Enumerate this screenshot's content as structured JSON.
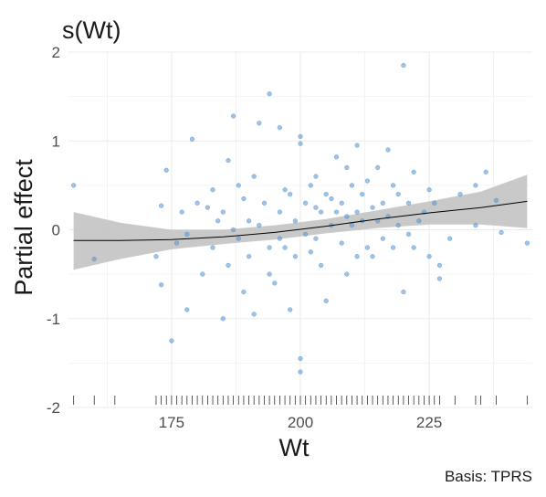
{
  "chart_data": {
    "type": "scatter",
    "title": "s(Wt)",
    "xlabel": "Wt",
    "ylabel": "Partial effect",
    "caption": "Basis: TPRS",
    "xlim": [
      155,
      245
    ],
    "ylim": [
      -2,
      2
    ],
    "x_ticks": [
      175,
      200,
      225
    ],
    "y_ticks": [
      -2,
      -1,
      0,
      1,
      2
    ],
    "grid": true,
    "colors": {
      "points": "#5B9BD5",
      "points_stroke": "#3A78B5",
      "ribbon": "#bfbfbf",
      "smooth_line": "#000000",
      "rug": "#333333",
      "grid": "#ebebeb"
    },
    "smooth": {
      "x": [
        156,
        165,
        175,
        185,
        195,
        205,
        215,
        225,
        235,
        244
      ],
      "fit": [
        -0.12,
        -0.12,
        -0.11,
        -0.08,
        -0.03,
        0.04,
        0.12,
        0.19,
        0.25,
        0.32
      ],
      "lower": [
        -0.45,
        -0.33,
        -0.22,
        -0.16,
        -0.11,
        -0.04,
        0.02,
        0.06,
        0.06,
        0.02
      ],
      "upper": [
        0.2,
        0.08,
        0.0,
        0.0,
        0.05,
        0.12,
        0.22,
        0.32,
        0.43,
        0.62
      ]
    },
    "rug_x": [
      156,
      160,
      164,
      172,
      173,
      174,
      175,
      176,
      177,
      178,
      179,
      180,
      181,
      182,
      183,
      184,
      185,
      186,
      187,
      188,
      189,
      190,
      191,
      192,
      193,
      194,
      195,
      196,
      197,
      198,
      199,
      200,
      201,
      202,
      203,
      204,
      205,
      206,
      207,
      208,
      209,
      210,
      211,
      212,
      213,
      214,
      215,
      216,
      217,
      218,
      219,
      220,
      221,
      222,
      223,
      224,
      225,
      226,
      227,
      230,
      234,
      235,
      238,
      244
    ],
    "points": [
      [
        156,
        0.5
      ],
      [
        160,
        -0.33
      ],
      [
        172,
        -0.3
      ],
      [
        173,
        0.27
      ],
      [
        174,
        0.67
      ],
      [
        173,
        -0.62
      ],
      [
        175,
        -1.25
      ],
      [
        176,
        -0.15
      ],
      [
        177,
        0.2
      ],
      [
        178,
        -0.05
      ],
      [
        178,
        -0.9
      ],
      [
        179,
        1.02
      ],
      [
        180,
        0.3
      ],
      [
        181,
        -0.5
      ],
      [
        182,
        0.25
      ],
      [
        183,
        -0.2
      ],
      [
        184,
        0.1
      ],
      [
        185,
        -1.0
      ],
      [
        186,
        0.78
      ],
      [
        186,
        -0.4
      ],
      [
        187,
        1.28
      ],
      [
        188,
        0.5
      ],
      [
        189,
        -0.7
      ],
      [
        190,
        0.1
      ],
      [
        191,
        0.6
      ],
      [
        191,
        -0.95
      ],
      [
        192,
        1.2
      ],
      [
        193,
        0.3
      ],
      [
        194,
        1.53
      ],
      [
        194,
        -0.2
      ],
      [
        195,
        -0.6
      ],
      [
        196,
        1.15
      ],
      [
        196,
        0.2
      ],
      [
        197,
        0.45
      ],
      [
        198,
        -0.9
      ],
      [
        199,
        0.1
      ],
      [
        200,
        1.05
      ],
      [
        200,
        0.97
      ],
      [
        200,
        -1.45
      ],
      [
        200,
        -1.6
      ],
      [
        201,
        0.3
      ],
      [
        202,
        -0.25
      ],
      [
        203,
        0.6
      ],
      [
        203,
        -0.1
      ],
      [
        204,
        0.2
      ],
      [
        205,
        -0.8
      ],
      [
        205,
        0.4
      ],
      [
        206,
        0.05
      ],
      [
        207,
        0.2
      ],
      [
        207,
        0.82
      ],
      [
        208,
        0.3
      ],
      [
        209,
        0.7
      ],
      [
        209,
        -0.5
      ],
      [
        210,
        0.05
      ],
      [
        211,
        0.95
      ],
      [
        211,
        -0.3
      ],
      [
        212,
        0.4
      ],
      [
        213,
        0.55
      ],
      [
        214,
        -0.3
      ],
      [
        215,
        0.1
      ],
      [
        215,
        0.7
      ],
      [
        216,
        0.3
      ],
      [
        217,
        0.9
      ],
      [
        218,
        -0.2
      ],
      [
        219,
        0.4
      ],
      [
        220,
        1.85
      ],
      [
        220,
        -0.7
      ],
      [
        221,
        0.3
      ],
      [
        222,
        0.65
      ],
      [
        222,
        -0.2
      ],
      [
        223,
        0.1
      ],
      [
        224,
        0.2
      ],
      [
        225,
        0.45
      ],
      [
        225,
        -0.3
      ],
      [
        226,
        0.3
      ],
      [
        227,
        -0.55
      ],
      [
        227,
        -0.4
      ],
      [
        229,
        -0.1
      ],
      [
        231,
        0.4
      ],
      [
        234,
        0.5
      ],
      [
        234,
        0.05
      ],
      [
        236,
        0.65
      ],
      [
        238,
        0.33
      ],
      [
        239,
        -0.03
      ],
      [
        244,
        -0.15
      ],
      [
        188,
        -0.1
      ],
      [
        190,
        -0.3
      ],
      [
        192,
        0.05
      ],
      [
        194,
        -0.5
      ],
      [
        196,
        -0.1
      ],
      [
        198,
        0.4
      ],
      [
        199,
        -0.3
      ],
      [
        201,
        -0.05
      ],
      [
        202,
        0.5
      ],
      [
        204,
        -0.4
      ],
      [
        206,
        0.35
      ],
      [
        208,
        -0.15
      ],
      [
        210,
        0.5
      ],
      [
        212,
        0.1
      ],
      [
        213,
        -0.2
      ],
      [
        214,
        0.25
      ],
      [
        216,
        -0.1
      ],
      [
        218,
        0.5
      ],
      [
        219,
        0.05
      ],
      [
        221,
        -0.05
      ],
      [
        183,
        0.45
      ],
      [
        185,
        0.2
      ],
      [
        187,
        0.0
      ],
      [
        189,
        0.35
      ],
      [
        197,
        -0.2
      ],
      [
        203,
        0.25
      ],
      [
        209,
        0.15
      ],
      [
        211,
        0.2
      ],
      [
        217,
        0.15
      ]
    ]
  }
}
